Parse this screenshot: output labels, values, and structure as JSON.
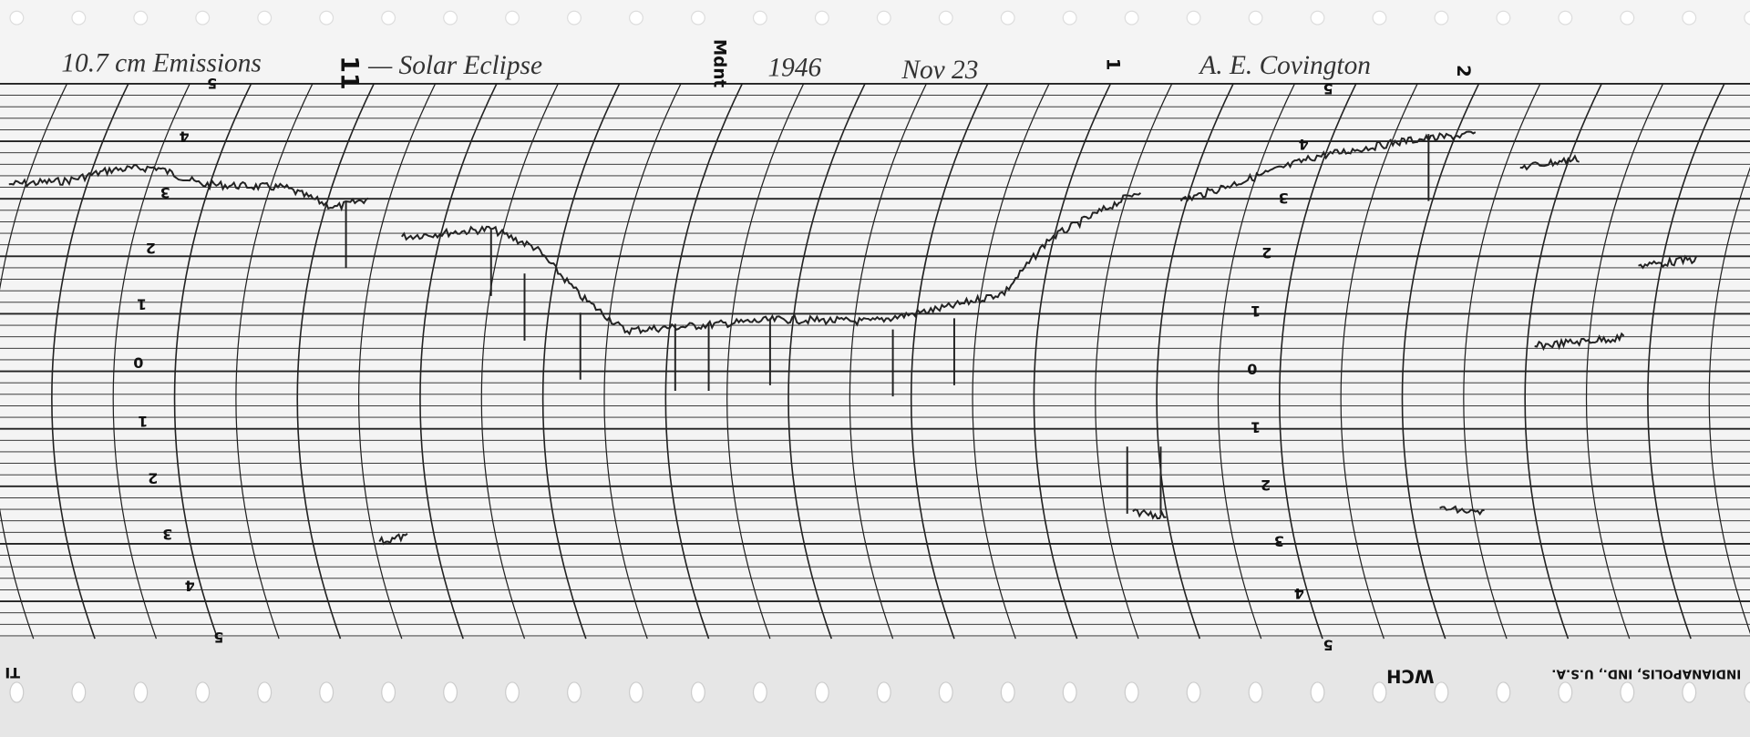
{
  "header": {
    "title": "10.7 cm Emissions",
    "hour_start": "11",
    "subtitle": "— Solar Eclipse",
    "midnight": "Mdnt",
    "year": "1946",
    "date": "Nov 23",
    "hour_one": "1",
    "author": "A. E. Covington",
    "hour_two": "2"
  },
  "scale_labels": [
    "5",
    "4",
    "3",
    "2",
    "1",
    "0",
    "1",
    "2",
    "3",
    "4",
    "5"
  ],
  "footer": {
    "code": "WCH",
    "maker": "INDIANAPOLIS, IND., U.S.A.",
    "mark": "TI"
  }
}
